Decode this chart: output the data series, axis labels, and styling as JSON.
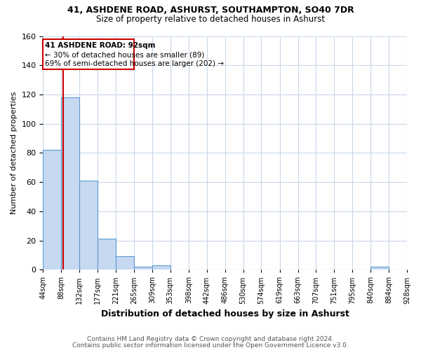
{
  "title1": "41, ASHDENE ROAD, ASHURST, SOUTHAMPTON, SO40 7DR",
  "title2": "Size of property relative to detached houses in Ashurst",
  "xlabel": "Distribution of detached houses by size in Ashurst",
  "ylabel": "Number of detached properties",
  "bin_edges": [
    44,
    88,
    132,
    177,
    221,
    265,
    309,
    353,
    398,
    442,
    486,
    530,
    574,
    619,
    663,
    707,
    751,
    795,
    840,
    884,
    928
  ],
  "bar_heights": [
    82,
    118,
    61,
    21,
    9,
    2,
    3,
    0,
    0,
    0,
    0,
    0,
    0,
    0,
    0,
    0,
    0,
    0,
    2,
    0
  ],
  "bar_color": "#c6d9f0",
  "bar_edge_color": "#5b9bd5",
  "property_size": 92,
  "red_line_color": "#cc0000",
  "annotation_line1": "41 ASHDENE ROAD: 92sqm",
  "annotation_line2": "← 30% of detached houses are smaller (89)",
  "annotation_line3": "69% of semi-detached houses are larger (202) →",
  "annotation_box_color": "#cc0000",
  "annotation_bg_color": "#ffffff",
  "ylim": [
    0,
    160
  ],
  "yticks": [
    0,
    20,
    40,
    60,
    80,
    100,
    120,
    140,
    160
  ],
  "footer1": "Contains HM Land Registry data © Crown copyright and database right 2024.",
  "footer2": "Contains public sector information licensed under the Open Government Licence v3.0.",
  "bg_color": "#ffffff",
  "grid_color": "#c8d8e8",
  "title1_fontsize": 9,
  "title2_fontsize": 8.5,
  "ylabel_fontsize": 8,
  "xlabel_fontsize": 9,
  "tick_fontsize": 7,
  "ann_fontsize": 7.5,
  "footer_fontsize": 6.5
}
